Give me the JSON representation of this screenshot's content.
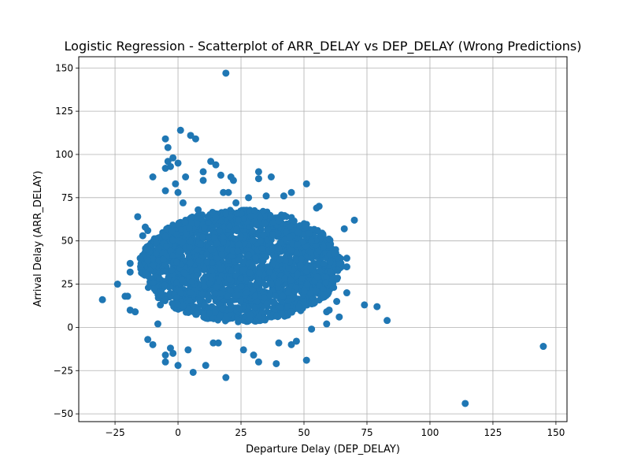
{
  "chart_data": {
    "type": "scatter",
    "title": "Logistic Regression - Scatterplot of ARR_DELAY vs DEP_DELAY (Wrong Predictions)",
    "xlabel": "Departure Delay (DEP_DELAY)",
    "ylabel": "Arrival Delay (ARR_DELAY)",
    "xlim": [
      -39.4,
      154.4
    ],
    "ylim": [
      -54.5,
      156.5
    ],
    "xticks": [
      -25,
      0,
      25,
      50,
      75,
      100,
      125,
      150
    ],
    "yticks": [
      -50,
      -25,
      0,
      25,
      50,
      75,
      100,
      125,
      150
    ],
    "grid": true,
    "colors": {
      "points": "#1f77b4",
      "grid": "#b0b0b0"
    },
    "dense_cluster": {
      "description_x_range": [
        -15,
        65
      ],
      "description_y_range": [
        3,
        68
      ],
      "approx_point_count": 2500
    },
    "points": [
      [
        -30,
        16
      ],
      [
        -24,
        25
      ],
      [
        -21,
        18
      ],
      [
        -20,
        18
      ],
      [
        -19,
        10
      ],
      [
        -19,
        32
      ],
      [
        -19,
        37
      ],
      [
        -17,
        9
      ],
      [
        -16,
        64
      ],
      [
        -15,
        40
      ],
      [
        -14,
        53
      ],
      [
        -13,
        58
      ],
      [
        -12,
        56
      ],
      [
        -12,
        -7
      ],
      [
        -10,
        87
      ],
      [
        -10,
        -10
      ],
      [
        -8,
        2
      ],
      [
        -7,
        13
      ],
      [
        -5,
        109
      ],
      [
        -5,
        92
      ],
      [
        -5,
        79
      ],
      [
        -5,
        -20
      ],
      [
        -5,
        -16
      ],
      [
        -4,
        104
      ],
      [
        -4,
        96
      ],
      [
        -3,
        93
      ],
      [
        -3,
        -12
      ],
      [
        -2,
        98
      ],
      [
        -2,
        -15
      ],
      [
        -1,
        83
      ],
      [
        0,
        95
      ],
      [
        0,
        -22
      ],
      [
        0,
        78
      ],
      [
        1,
        114
      ],
      [
        2,
        72
      ],
      [
        3,
        87
      ],
      [
        4,
        -13
      ],
      [
        5,
        111
      ],
      [
        6,
        -26
      ],
      [
        7,
        109
      ],
      [
        8,
        68
      ],
      [
        10,
        90
      ],
      [
        10,
        85
      ],
      [
        11,
        -22
      ],
      [
        13,
        96
      ],
      [
        14,
        -9
      ],
      [
        15,
        94
      ],
      [
        16,
        -9
      ],
      [
        17,
        88
      ],
      [
        18,
        78
      ],
      [
        19,
        147
      ],
      [
        19,
        -29
      ],
      [
        20,
        78
      ],
      [
        21,
        87
      ],
      [
        22,
        85
      ],
      [
        23,
        72
      ],
      [
        24,
        -5
      ],
      [
        26,
        -13
      ],
      [
        28,
        75
      ],
      [
        30,
        -16
      ],
      [
        32,
        90
      ],
      [
        32,
        86
      ],
      [
        32,
        -20
      ],
      [
        35,
        76
      ],
      [
        37,
        87
      ],
      [
        39,
        -21
      ],
      [
        40,
        -9
      ],
      [
        42,
        76
      ],
      [
        45,
        78
      ],
      [
        45,
        -10
      ],
      [
        47,
        -8
      ],
      [
        51,
        83
      ],
      [
        51,
        -19
      ],
      [
        53,
        -1
      ],
      [
        55,
        69
      ],
      [
        56,
        70
      ],
      [
        58,
        19
      ],
      [
        59,
        9
      ],
      [
        59,
        2
      ],
      [
        60,
        10
      ],
      [
        63,
        15
      ],
      [
        64,
        6
      ],
      [
        66,
        57
      ],
      [
        67,
        35
      ],
      [
        67,
        40
      ],
      [
        67,
        20
      ],
      [
        70,
        62
      ],
      [
        74,
        13
      ],
      [
        79,
        12
      ],
      [
        83,
        4
      ],
      [
        114,
        -44
      ],
      [
        145,
        -11
      ]
    ]
  }
}
